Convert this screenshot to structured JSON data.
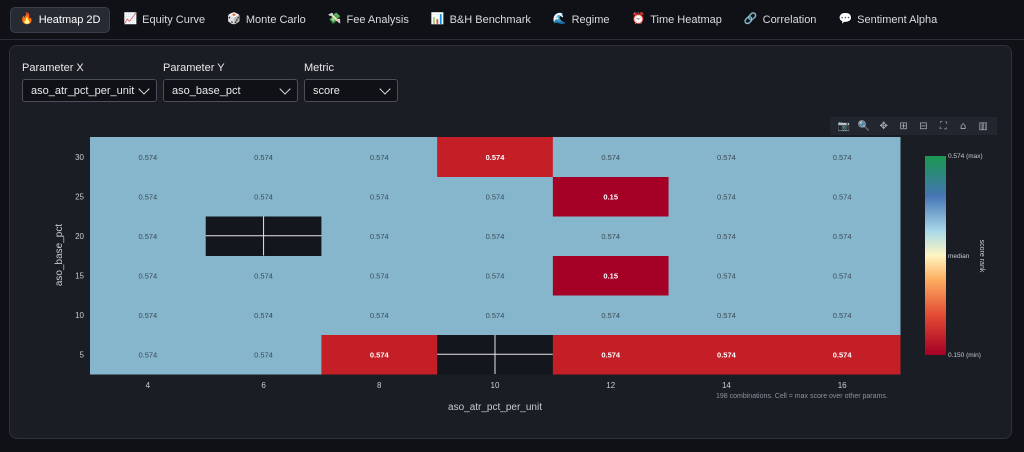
{
  "tabs": [
    {
      "icon": "🔥",
      "label": "Heatmap 2D",
      "icon_name": "fire-icon",
      "active": true
    },
    {
      "icon": "📈",
      "label": "Equity Curve",
      "icon_name": "chart-up-icon",
      "active": false
    },
    {
      "icon": "🎲",
      "label": "Monte Carlo",
      "icon_name": "dice-icon",
      "active": false
    },
    {
      "icon": "💸",
      "label": "Fee Analysis",
      "icon_name": "money-icon",
      "active": false
    },
    {
      "icon": "📊",
      "label": "B&H Benchmark",
      "icon_name": "bar-chart-icon",
      "active": false
    },
    {
      "icon": "🌊",
      "label": "Regime",
      "icon_name": "wave-icon",
      "active": false
    },
    {
      "icon": "⏰",
      "label": "Time Heatmap",
      "icon_name": "clock-icon",
      "active": false
    },
    {
      "icon": "🔗",
      "label": "Correlation",
      "icon_name": "link-icon",
      "active": false
    },
    {
      "icon": "💬",
      "label": "Sentiment Alpha",
      "icon_name": "speech-icon",
      "active": false
    }
  ],
  "controls": {
    "param_x": {
      "label": "Parameter X",
      "value": "aso_atr_pct_per_unit"
    },
    "param_y": {
      "label": "Parameter Y",
      "value": "aso_base_pct"
    },
    "metric": {
      "label": "Metric",
      "value": "score"
    }
  },
  "modebar": [
    "camera-icon",
    "zoom-icon",
    "pan-icon",
    "zoom-in-icon",
    "zoom-out-icon",
    "autoscale-icon",
    "reset-home-icon",
    "plotly-logo-icon"
  ],
  "colors": {
    "default_cell": "#86b6cc",
    "max_cell": "#c41e27",
    "min_cell": "#a50026",
    "empty_cell": "#13161c"
  },
  "chart_data": {
    "type": "heatmap",
    "xlabel": "aso_atr_pct_per_unit",
    "ylabel": "aso_base_pct",
    "x": [
      4,
      6,
      8,
      10,
      12,
      14,
      16
    ],
    "y": [
      5,
      10,
      15,
      20,
      25,
      30
    ],
    "z": [
      [
        0.574,
        0.574,
        0.574,
        null,
        0.574,
        0.574,
        0.574
      ],
      [
        0.574,
        0.574,
        0.574,
        0.574,
        0.574,
        0.574,
        0.574
      ],
      [
        0.574,
        0.574,
        0.574,
        0.574,
        0.15,
        0.574,
        0.574
      ],
      [
        0.574,
        null,
        0.574,
        0.574,
        0.574,
        0.574,
        0.574
      ],
      [
        0.574,
        0.574,
        0.574,
        0.574,
        0.15,
        0.574,
        0.574
      ],
      [
        0.574,
        0.574,
        0.574,
        0.574,
        0.574,
        0.574,
        0.574
      ]
    ],
    "highlight": [
      [
        false,
        false,
        true,
        false,
        true,
        true,
        true
      ],
      [
        false,
        false,
        false,
        false,
        false,
        false,
        false
      ],
      [
        false,
        false,
        false,
        false,
        true,
        false,
        false
      ],
      [
        false,
        false,
        false,
        false,
        false,
        false,
        false
      ],
      [
        false,
        false,
        false,
        false,
        true,
        false,
        false
      ],
      [
        false,
        false,
        false,
        true,
        false,
        false,
        false
      ]
    ],
    "colorbar": {
      "title": "score rank",
      "max_label": "0.574 (max)",
      "median_label": "median",
      "min_label": "0.150 (min)"
    },
    "annotation": "198 combinations. Cell = max score over other params."
  }
}
